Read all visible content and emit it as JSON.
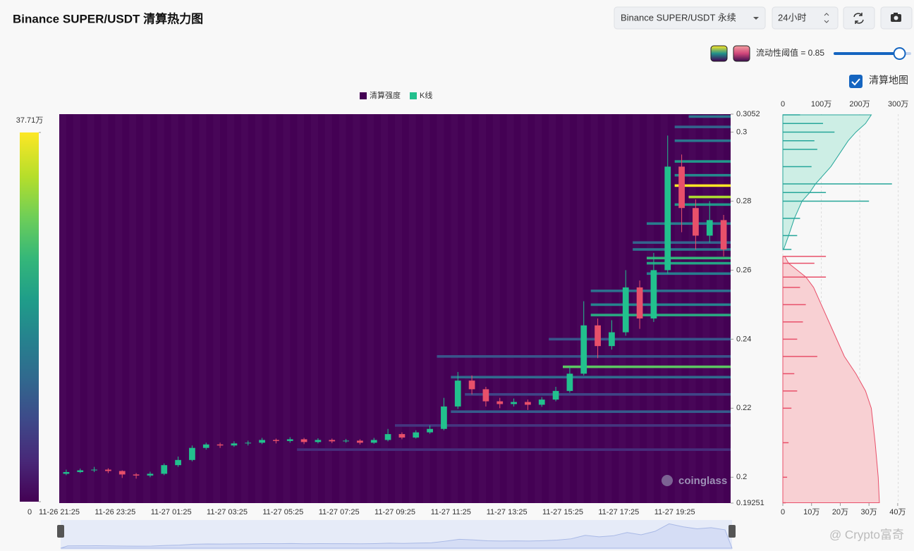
{
  "header": {
    "title": "Binance SUPER/USDT 清算热力图",
    "symbol_select": "Binance SUPER/USDT 永续",
    "range_select": "24小时",
    "threshold": {
      "label": "流动性阈值 = 0.85",
      "value": 0.85
    },
    "map_toggle": {
      "label": "清算地图",
      "checked": true
    },
    "footer_watermark": "@ Crypto富奇"
  },
  "chart_data": [
    {
      "type": "heatmap",
      "legend": [
        {
          "name": "清算强度",
          "color": "#440154"
        },
        {
          "name": "K线",
          "color": "#22c08d"
        }
      ],
      "background": "#440154",
      "up_color": "#22c08d",
      "down_color": "#e8506a",
      "watermark": "coinglass",
      "x": [
        "11-26 21:25",
        "11-26 21:55",
        "11-26 22:25",
        "11-26 22:55",
        "11-26 23:25",
        "11-26 23:55",
        "11-27 00:25",
        "11-27 00:55",
        "11-27 01:25",
        "11-27 01:55",
        "11-27 02:25",
        "11-27 02:55",
        "11-27 03:25",
        "11-27 03:55",
        "11-27 04:25",
        "11-27 04:55",
        "11-27 05:25",
        "11-27 05:55",
        "11-27 06:25",
        "11-27 06:55",
        "11-27 07:25",
        "11-27 07:55",
        "11-27 08:25",
        "11-27 08:55",
        "11-27 09:25",
        "11-27 09:55",
        "11-27 10:25",
        "11-27 10:55",
        "11-27 11:25",
        "11-27 11:55",
        "11-27 12:25",
        "11-27 12:55",
        "11-27 13:25",
        "11-27 13:55",
        "11-27 14:25",
        "11-27 14:55",
        "11-27 15:25",
        "11-27 15:55",
        "11-27 16:25",
        "11-27 16:55",
        "11-27 17:25",
        "11-27 17:55",
        "11-27 18:25",
        "11-27 18:55",
        "11-27 19:25",
        "11-27 19:55",
        "11-27 20:25",
        "11-27 20:55"
      ],
      "open": [
        0.201,
        0.2015,
        0.202,
        0.2022,
        0.2018,
        0.2008,
        0.2005,
        0.201,
        0.2035,
        0.205,
        0.2085,
        0.2095,
        0.2092,
        0.2098,
        0.21,
        0.2108,
        0.2105,
        0.211,
        0.2102,
        0.2108,
        0.2104,
        0.2106,
        0.21,
        0.2108,
        0.2125,
        0.2115,
        0.213,
        0.214,
        0.2205,
        0.228,
        0.2255,
        0.222,
        0.2212,
        0.2218,
        0.221,
        0.2225,
        0.225,
        0.23,
        0.244,
        0.238,
        0.242,
        0.255,
        0.246,
        0.26,
        0.29,
        0.278,
        0.27,
        0.2745
      ],
      "high": [
        0.2022,
        0.2025,
        0.203,
        0.2026,
        0.202,
        0.2012,
        0.2016,
        0.204,
        0.206,
        0.2092,
        0.21,
        0.21,
        0.2104,
        0.2106,
        0.2114,
        0.2112,
        0.2116,
        0.2114,
        0.2113,
        0.2112,
        0.2111,
        0.211,
        0.2114,
        0.214,
        0.213,
        0.2136,
        0.215,
        0.223,
        0.2305,
        0.2295,
        0.2262,
        0.223,
        0.2228,
        0.2225,
        0.2232,
        0.2262,
        0.232,
        0.251,
        0.246,
        0.2455,
        0.26,
        0.257,
        0.265,
        0.299,
        0.2935,
        0.2805,
        0.28,
        0.276
      ],
      "low": [
        0.2006,
        0.2012,
        0.2015,
        0.2012,
        0.1998,
        0.1996,
        0.2,
        0.2006,
        0.203,
        0.2046,
        0.208,
        0.2085,
        0.2088,
        0.2092,
        0.2096,
        0.2098,
        0.21,
        0.2096,
        0.2098,
        0.2099,
        0.21,
        0.2095,
        0.2097,
        0.2104,
        0.211,
        0.2112,
        0.2126,
        0.2136,
        0.2198,
        0.224,
        0.2205,
        0.22,
        0.2205,
        0.2195,
        0.2204,
        0.222,
        0.2245,
        0.2295,
        0.2345,
        0.237,
        0.241,
        0.243,
        0.245,
        0.259,
        0.271,
        0.266,
        0.268,
        0.264
      ],
      "close": [
        0.2015,
        0.202,
        0.2022,
        0.2018,
        0.2008,
        0.2005,
        0.201,
        0.2035,
        0.205,
        0.2085,
        0.2095,
        0.2092,
        0.2098,
        0.21,
        0.2108,
        0.2105,
        0.211,
        0.2102,
        0.2108,
        0.2104,
        0.2106,
        0.21,
        0.2108,
        0.2125,
        0.2115,
        0.213,
        0.214,
        0.2205,
        0.228,
        0.2255,
        0.222,
        0.2212,
        0.2218,
        0.221,
        0.2225,
        0.225,
        0.23,
        0.244,
        0.238,
        0.242,
        0.255,
        0.246,
        0.26,
        0.29,
        0.278,
        0.27,
        0.2745,
        0.266
      ],
      "levels": {
        "price": [
          0.3045,
          0.3015,
          0.2975,
          0.2915,
          0.2875,
          0.2845,
          0.2812,
          0.279,
          0.2735,
          0.268,
          0.266,
          0.2635,
          0.262,
          0.259,
          0.254,
          0.25,
          0.247,
          0.24,
          0.235,
          0.232,
          0.229,
          0.224,
          0.219,
          0.215,
          0.208
        ],
        "start": [
          "11-27 19:55",
          "11-27 19:25",
          "11-27 19:25",
          "11-27 19:25",
          "11-27 19:25",
          "11-27 19:25",
          "11-27 19:55",
          "11-27 19:25",
          "11-27 18:25",
          "11-27 17:55",
          "11-27 17:55",
          "11-27 18:25",
          "11-27 18:25",
          "11-27 18:25",
          "11-27 16:25",
          "11-27 16:25",
          "11-27 16:25",
          "11-27 14:55",
          "11-27 10:55",
          "11-27 15:25",
          "11-27 11:25",
          "11-27 11:55",
          "11-27 11:25",
          "11-27 09:25",
          "11-27 05:55"
        ],
        "value": [
          150000,
          120000,
          150000,
          200000,
          180000,
          377100,
          330000,
          200000,
          160000,
          120000,
          150000,
          250000,
          220000,
          160000,
          140000,
          170000,
          230000,
          100000,
          100000,
          280000,
          130000,
          80000,
          110000,
          60000,
          50000
        ]
      },
      "ylim": [
        0.19251,
        0.3052
      ],
      "yticks": [
        0.19251,
        0.2,
        0.22,
        0.24,
        0.26,
        0.28,
        0.3,
        0.3052
      ],
      "xticks": [
        "11-26 21:25",
        "11-26 23:25",
        "11-27 01:25",
        "11-27 03:25",
        "11-27 05:25",
        "11-27 07:25",
        "11-27 09:25",
        "11-27 11:25",
        "11-27 13:25",
        "11-27 15:25",
        "11-27 17:25",
        "11-27 19:25"
      ],
      "zlim": [
        0,
        377100
      ],
      "zticks": [
        0,
        {
          "value": 377100,
          "label": "37.71万"
        }
      ]
    },
    {
      "type": "liquidation_map",
      "ylim": [
        0.19251,
        0.3052
      ],
      "xlim": [
        0,
        442000
      ],
      "xticks": [
        0,
        {
          "value": 100000,
          "label": "10万"
        },
        {
          "value": 200000,
          "label": "20万"
        },
        {
          "value": 300000,
          "label": "30万"
        },
        {
          "value": 400000,
          "label": "40万"
        }
      ],
      "x2lim": [
        0,
        3300000
      ],
      "x2ticks": [
        0,
        {
          "value": 1000000,
          "label": "100万"
        },
        {
          "value": 2000000,
          "label": "200万"
        },
        {
          "value": 3000000,
          "label": "300万"
        }
      ],
      "short": {
        "color": "#26a69a",
        "fill": "#cdeee5",
        "prices": [
          0.266,
          0.27,
          0.275,
          0.28,
          0.2825,
          0.285,
          0.29,
          0.295,
          0.2975,
          0.3,
          0.3025,
          0.305
        ],
        "bars": [
          30000,
          50000,
          60000,
          300000,
          150000,
          380000,
          100000,
          120000,
          110000,
          180000,
          140000,
          60000
        ],
        "cumulative": [
          20000,
          150000,
          300000,
          500000,
          700000,
          850000,
          1250000,
          1550000,
          1700000,
          1900000,
          2150000,
          2300000
        ]
      },
      "long": {
        "color": "#e8506a",
        "fill": "#f8d0d3",
        "prices": [
          0.264,
          0.262,
          0.258,
          0.255,
          0.25,
          0.245,
          0.24,
          0.235,
          0.23,
          0.225,
          0.22,
          0.21,
          0.2,
          0.1926
        ],
        "bars": [
          150000,
          110000,
          150000,
          60000,
          80000,
          70000,
          50000,
          120000,
          40000,
          50000,
          30000,
          20000,
          15000,
          10000
        ],
        "cumulative": [
          50000,
          150000,
          600000,
          800000,
          1000000,
          1200000,
          1400000,
          1600000,
          1900000,
          2150000,
          2300000,
          2400000,
          2480000,
          2510000
        ]
      }
    }
  ]
}
